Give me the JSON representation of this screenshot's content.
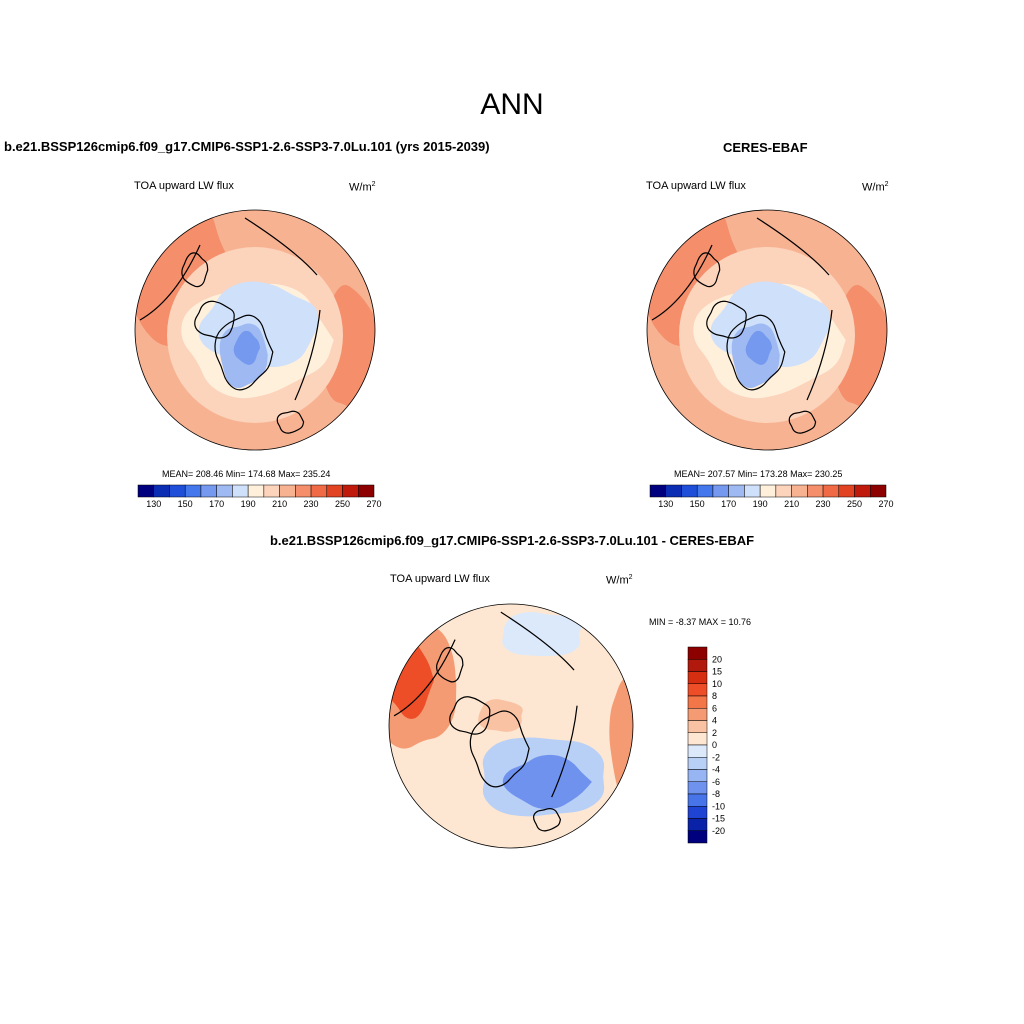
{
  "chart_data": {
    "type": "heatmap",
    "title": "ANN",
    "panels": [
      {
        "id": "model",
        "title": "b.e21.BSSP126cmip6.f09_g17.CMIP6-SSP1-2.6-SSP3-7.0Lu.101 (yrs 2015-2039)",
        "variable": "TOA upward LW flux",
        "units": "W/m",
        "units_sup": "2",
        "stats": {
          "mean": "208.46",
          "min": "174.68",
          "max": "235.24"
        },
        "stats_text": "MEAN= 208.46  Min= 174.68  Max= 235.24",
        "colorbar_ticks": [
          "130",
          "150",
          "170",
          "190",
          "210",
          "230",
          "250",
          "270"
        ],
        "colorbar_levels": [
          120,
          130,
          140,
          150,
          160,
          170,
          180,
          190,
          200,
          210,
          220,
          230,
          240,
          250,
          260,
          270,
          280
        ]
      },
      {
        "id": "obs",
        "title": "CERES-EBAF",
        "variable": "TOA upward LW flux",
        "units": "W/m",
        "units_sup": "2",
        "stats": {
          "mean": "207.57",
          "min": "173.28",
          "max": "230.25"
        },
        "stats_text": "MEAN= 207.57  Min= 173.28  Max= 230.25",
        "colorbar_ticks": [
          "130",
          "150",
          "170",
          "190",
          "210",
          "230",
          "250",
          "270"
        ],
        "colorbar_levels": [
          120,
          130,
          140,
          150,
          160,
          170,
          180,
          190,
          200,
          210,
          220,
          230,
          240,
          250,
          260,
          270,
          280
        ]
      },
      {
        "id": "diff",
        "title": "b.e21.BSSP126cmip6.f09_g17.CMIP6-SSP1-2.6-SSP3-7.0Lu.101 - CERES-EBAF",
        "variable": "TOA upward LW flux",
        "units": "W/m",
        "units_sup": "2",
        "stats": {
          "min": "-8.37",
          "max": "10.76"
        },
        "stats_text": "MIN =  -8.37 MAX =  10.76",
        "colorbar_ticks": [
          "20",
          "15",
          "10",
          "8",
          "6",
          "4",
          "2",
          "0",
          "-2",
          "-4",
          "-6",
          "-8",
          "-10",
          "-15",
          "-20"
        ]
      }
    ]
  },
  "colors": {
    "seq": [
      "#00007f",
      "#0a2db4",
      "#1f4fd8",
      "#4476ec",
      "#7599ee",
      "#9fb9f2",
      "#cfe0fb",
      "#fff0dc",
      "#fcd3bb",
      "#f7b292",
      "#f48e6b",
      "#ef6a45",
      "#e24322",
      "#c01a0c",
      "#8d0000"
    ],
    "diff": [
      "#8d0000",
      "#b1190c",
      "#d52e10",
      "#ed4d27",
      "#f37649",
      "#f59b74",
      "#f9c2a2",
      "#fde7d2",
      "#dce9fb",
      "#b8cff6",
      "#96b5f2",
      "#6f92ee",
      "#4774e8",
      "#1f43d3",
      "#0a22a8",
      "#00007f"
    ],
    "land_edge": "#000000"
  }
}
